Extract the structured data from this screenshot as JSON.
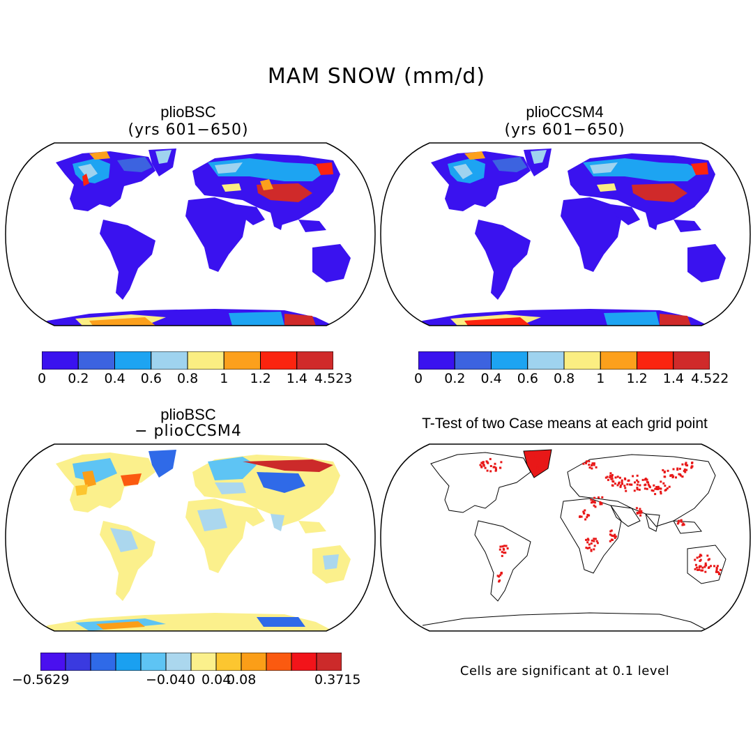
{
  "title": "MAM SNOW (mm/d)",
  "panels": [
    {
      "id": "top-left",
      "title": "plioBSC",
      "subtitle": "(yrs 601−650)",
      "colorbar": {
        "colors": [
          "#3a12ef",
          "#3c63e0",
          "#1da4f2",
          "#9fd3ef",
          "#fbee82",
          "#fca01c",
          "#fb240f",
          "#d02a2a"
        ],
        "tick_labels": [
          "0",
          "0.2",
          "0.4",
          "0.6",
          "0.8",
          "1",
          "1.2",
          "1.4",
          "4.523"
        ]
      }
    },
    {
      "id": "top-right",
      "title": "plioCCSM4",
      "subtitle": "(yrs 601−650)",
      "colorbar": {
        "colors": [
          "#3a12ef",
          "#3c63e0",
          "#1da4f2",
          "#9fd3ef",
          "#fbee82",
          "#fca01c",
          "#fb240f",
          "#d02a2a"
        ],
        "tick_labels": [
          "0",
          "0.2",
          "0.4",
          "0.6",
          "0.8",
          "1",
          "1.2",
          "1.4",
          "4.522"
        ]
      }
    },
    {
      "id": "bottom-left",
      "title": "plioBSC",
      "subtitle": "− plioCCSM4",
      "colorbar": {
        "colors": [
          "#4a10ef",
          "#3a3ae0",
          "#2f6ae8",
          "#1aa0f0",
          "#5ec4f4",
          "#abd7ee",
          "#fbf08c",
          "#fcc630",
          "#fb9e18",
          "#fb5a10",
          "#f2141a",
          "#cc2a2a"
        ],
        "tick_labels": [
          "−0.5629",
          "−0.04",
          "0",
          "0.04",
          "0.08",
          "0.3715"
        ]
      }
    },
    {
      "id": "bottom-right",
      "title": "T-Test of two Case means at each grid point",
      "note": "Cells are significant at 0.1 level"
    }
  ]
}
